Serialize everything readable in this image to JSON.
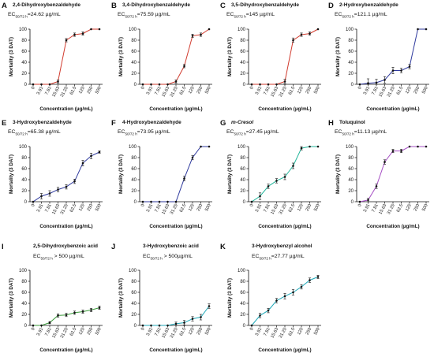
{
  "chart_data": [
    {
      "type": "line",
      "panel": "A",
      "title": "2,4-Dihydroxybenzaldehyde",
      "title_italic": false,
      "ec_value": "=24.62 µg/mL",
      "color": "#d13b2e",
      "categories": [
        "0",
        "3.91",
        "7.81",
        "15.63",
        "31.25",
        "62.5",
        "125",
        "250",
        "500"
      ],
      "values": [
        0,
        0,
        0,
        5,
        80,
        90,
        92,
        100,
        100
      ],
      "errors": [
        0,
        0,
        0,
        3,
        3,
        3,
        3,
        0,
        0
      ],
      "ylabel": "Mortality (3 DAT)",
      "xlabel": "Concentration (µg/mL)",
      "ylim": [
        0,
        100
      ],
      "yticks": [
        0,
        20,
        40,
        60,
        80,
        100
      ]
    },
    {
      "type": "line",
      "panel": "B",
      "title": "3,4-Dihydroxybenzaldehyde",
      "title_italic": false,
      "ec_value": "=75.59 µg/mL",
      "color": "#d13b2e",
      "categories": [
        "0",
        "3.91",
        "7.81",
        "15.63",
        "31.25",
        "62.5",
        "125",
        "250",
        "500"
      ],
      "values": [
        0,
        0,
        0,
        0,
        5,
        33,
        88,
        90,
        100
      ],
      "errors": [
        0,
        0,
        0,
        0,
        3,
        3,
        3,
        3,
        0
      ],
      "ylabel": "Mortality (3 DAT)",
      "xlabel": "Concentration (µg/mL)",
      "ylim": [
        0,
        100
      ],
      "yticks": [
        0,
        20,
        40,
        60,
        80,
        100
      ]
    },
    {
      "type": "line",
      "panel": "C",
      "title": "3,5-Dihydroxybenzaldehyde",
      "title_italic": false,
      "ec_value": "=145 µg/mL",
      "color": "#d13b2e",
      "categories": [
        "0",
        "3.91",
        "7.81",
        "15.63",
        "31.25",
        "62.5",
        "125",
        "250",
        "500"
      ],
      "values": [
        0,
        0,
        0,
        0,
        5,
        80,
        90,
        92,
        100
      ],
      "errors": [
        0,
        0,
        0,
        0,
        4,
        4,
        3,
        3,
        0
      ],
      "ylabel": "Mortality (3 DAT)",
      "xlabel": "Concentration (µg/mL)",
      "ylim": [
        0,
        100
      ],
      "yticks": [
        0,
        20,
        40,
        60,
        80,
        100
      ]
    },
    {
      "type": "line",
      "panel": "D",
      "title": "2-Hydroxybenzaldehyde",
      "title_italic": false,
      "ec_value": "=121.1 µg/mL",
      "color": "#2f3a9e",
      "categories": [
        "0",
        "3.91",
        "7.81",
        "15.63",
        "31.25",
        "62.5",
        "125",
        "250",
        "500"
      ],
      "values": [
        0,
        2,
        3,
        8,
        25,
        25,
        32,
        100,
        100
      ],
      "errors": [
        0,
        8,
        6,
        6,
        6,
        4,
        4,
        0,
        0
      ],
      "ylabel": "Mortality (3 DAT)",
      "xlabel": "Concentration (µg/mL)",
      "ylim": [
        0,
        100
      ],
      "yticks": [
        0,
        20,
        40,
        60,
        80,
        100
      ]
    },
    {
      "type": "line",
      "panel": "E",
      "title": "3-Hydroxybenzaldehyde",
      "title_italic": false,
      "ec_value": "=65.38 µg/mL",
      "color": "#2f3a9e",
      "categories": [
        "0",
        "3.91",
        "7.81",
        "15.63",
        "31.25",
        "62.5",
        "125",
        "250",
        "500"
      ],
      "values": [
        0,
        10,
        15,
        22,
        27,
        37,
        70,
        83,
        90
      ],
      "errors": [
        0,
        5,
        5,
        4,
        4,
        4,
        5,
        5,
        2
      ],
      "ylabel": "Mortality (3 DAT)",
      "xlabel": "Concentration (µg/mL)",
      "ylim": [
        0,
        100
      ],
      "yticks": [
        0,
        20,
        40,
        60,
        80,
        100
      ]
    },
    {
      "type": "line",
      "panel": "F",
      "title": "4-Hydroxybenzaldehyde",
      "title_italic": false,
      "ec_value": "=73.95 µg/mL",
      "color": "#2f3a9e",
      "categories": [
        "0",
        "3.91",
        "7.81",
        "15.63",
        "31.25",
        "62.5",
        "125",
        "250",
        "500"
      ],
      "values": [
        0,
        0,
        0,
        0,
        0,
        42,
        80,
        100,
        100
      ],
      "errors": [
        0,
        0,
        0,
        0,
        0,
        4,
        4,
        0,
        0
      ],
      "ylabel": "Mortality (3 DAT)",
      "xlabel": "Concentration (µg/mL)",
      "ylim": [
        0,
        100
      ],
      "yticks": [
        0,
        20,
        40,
        60,
        80,
        100
      ]
    },
    {
      "type": "line",
      "panel": "G",
      "title": "m-Cresol",
      "title_italic": true,
      "ec_value": "=27.45 µg/mL",
      "color": "#22b59a",
      "categories": [
        "0",
        "3.91",
        "7.81",
        "15.63",
        "31.25",
        "62.5",
        "125",
        "250",
        "500"
      ],
      "values": [
        0,
        10,
        28,
        38,
        45,
        65,
        97,
        100,
        100
      ],
      "errors": [
        0,
        6,
        4,
        4,
        5,
        5,
        3,
        0,
        0
      ],
      "ylabel": "Mortality (3 DAT)",
      "xlabel": "Concentration (µg/mL)",
      "ylim": [
        0,
        100
      ],
      "yticks": [
        0,
        20,
        40,
        60,
        80,
        100
      ]
    },
    {
      "type": "line",
      "panel": "H",
      "title": "Toluquinol",
      "title_italic": false,
      "ec_value": "=11.13 µg/mL",
      "color": "#a64fc4",
      "categories": [
        "0",
        "3.91",
        "7.81",
        "15.63",
        "31.25",
        "62.5",
        "125",
        "250",
        "500"
      ],
      "values": [
        0,
        3,
        28,
        72,
        92,
        92,
        100,
        100,
        100
      ],
      "errors": [
        0,
        3,
        4,
        4,
        3,
        3,
        0,
        0,
        0
      ],
      "ylabel": "Mortality (3 DAT)",
      "xlabel": "Concentration (µg/mL)",
      "ylim": [
        0,
        100
      ],
      "yticks": [
        0,
        20,
        40,
        60,
        80,
        100
      ]
    },
    {
      "type": "line",
      "panel": "I",
      "title": "2,5-Dihydroxybenzoic acid",
      "title_italic": false,
      "ec_value": "> 500 µg/mL",
      "color": "#3a9a3a",
      "categories": [
        "0",
        "3.91",
        "7.81",
        "15.63",
        "31.25",
        "62.5",
        "125",
        "250",
        "500"
      ],
      "values": [
        0,
        0,
        5,
        18,
        19,
        23,
        25,
        28,
        32
      ],
      "errors": [
        0,
        0,
        2,
        3,
        3,
        3,
        3,
        3,
        3
      ],
      "ylabel": "Mortality (3 DAT)",
      "xlabel": "Concentration (µg/mL)",
      "ylim": [
        0,
        100
      ],
      "yticks": [
        0,
        20,
        40,
        60,
        80,
        100
      ]
    },
    {
      "type": "line",
      "panel": "J",
      "title": "3-Hydroxybenzoic acid",
      "title_italic": false,
      "ec_value": "> 500µg/mL",
      "color": "#1fa8b8",
      "categories": [
        "0",
        "3.91",
        "7.81",
        "15.63",
        "31.25",
        "62.5",
        "125",
        "250",
        "500"
      ],
      "values": [
        0,
        0,
        0,
        0,
        3,
        5,
        12,
        15,
        35
      ],
      "errors": [
        0,
        0,
        0,
        0,
        3,
        4,
        4,
        5,
        4
      ],
      "ylabel": "Mortality (3 DAT)",
      "xlabel": "Concentration (µg/mL)",
      "ylim": [
        0,
        100
      ],
      "yticks": [
        0,
        20,
        40,
        60,
        80,
        100
      ]
    },
    {
      "type": "line",
      "panel": "K",
      "title": "3-Hydroxybenzyl alcohol",
      "title_italic": false,
      "ec_value": "=27.77 µg/mL",
      "color": "#1fa8b8",
      "categories": [
        "0",
        "3.91",
        "7.81",
        "15.63",
        "31.25",
        "62.5",
        "125",
        "250",
        "500"
      ],
      "values": [
        0,
        18,
        27,
        45,
        53,
        60,
        70,
        82,
        88
      ],
      "errors": [
        0,
        4,
        4,
        4,
        5,
        5,
        4,
        4,
        3
      ],
      "ylabel": "Mortality (3 DAT)",
      "xlabel": "Concentration (µg/mL)",
      "ylim": [
        0,
        100
      ],
      "yticks": [
        0,
        20,
        40,
        60,
        80,
        100
      ]
    }
  ],
  "ec_prefix": "EC",
  "ec_sub": "50/72 h"
}
